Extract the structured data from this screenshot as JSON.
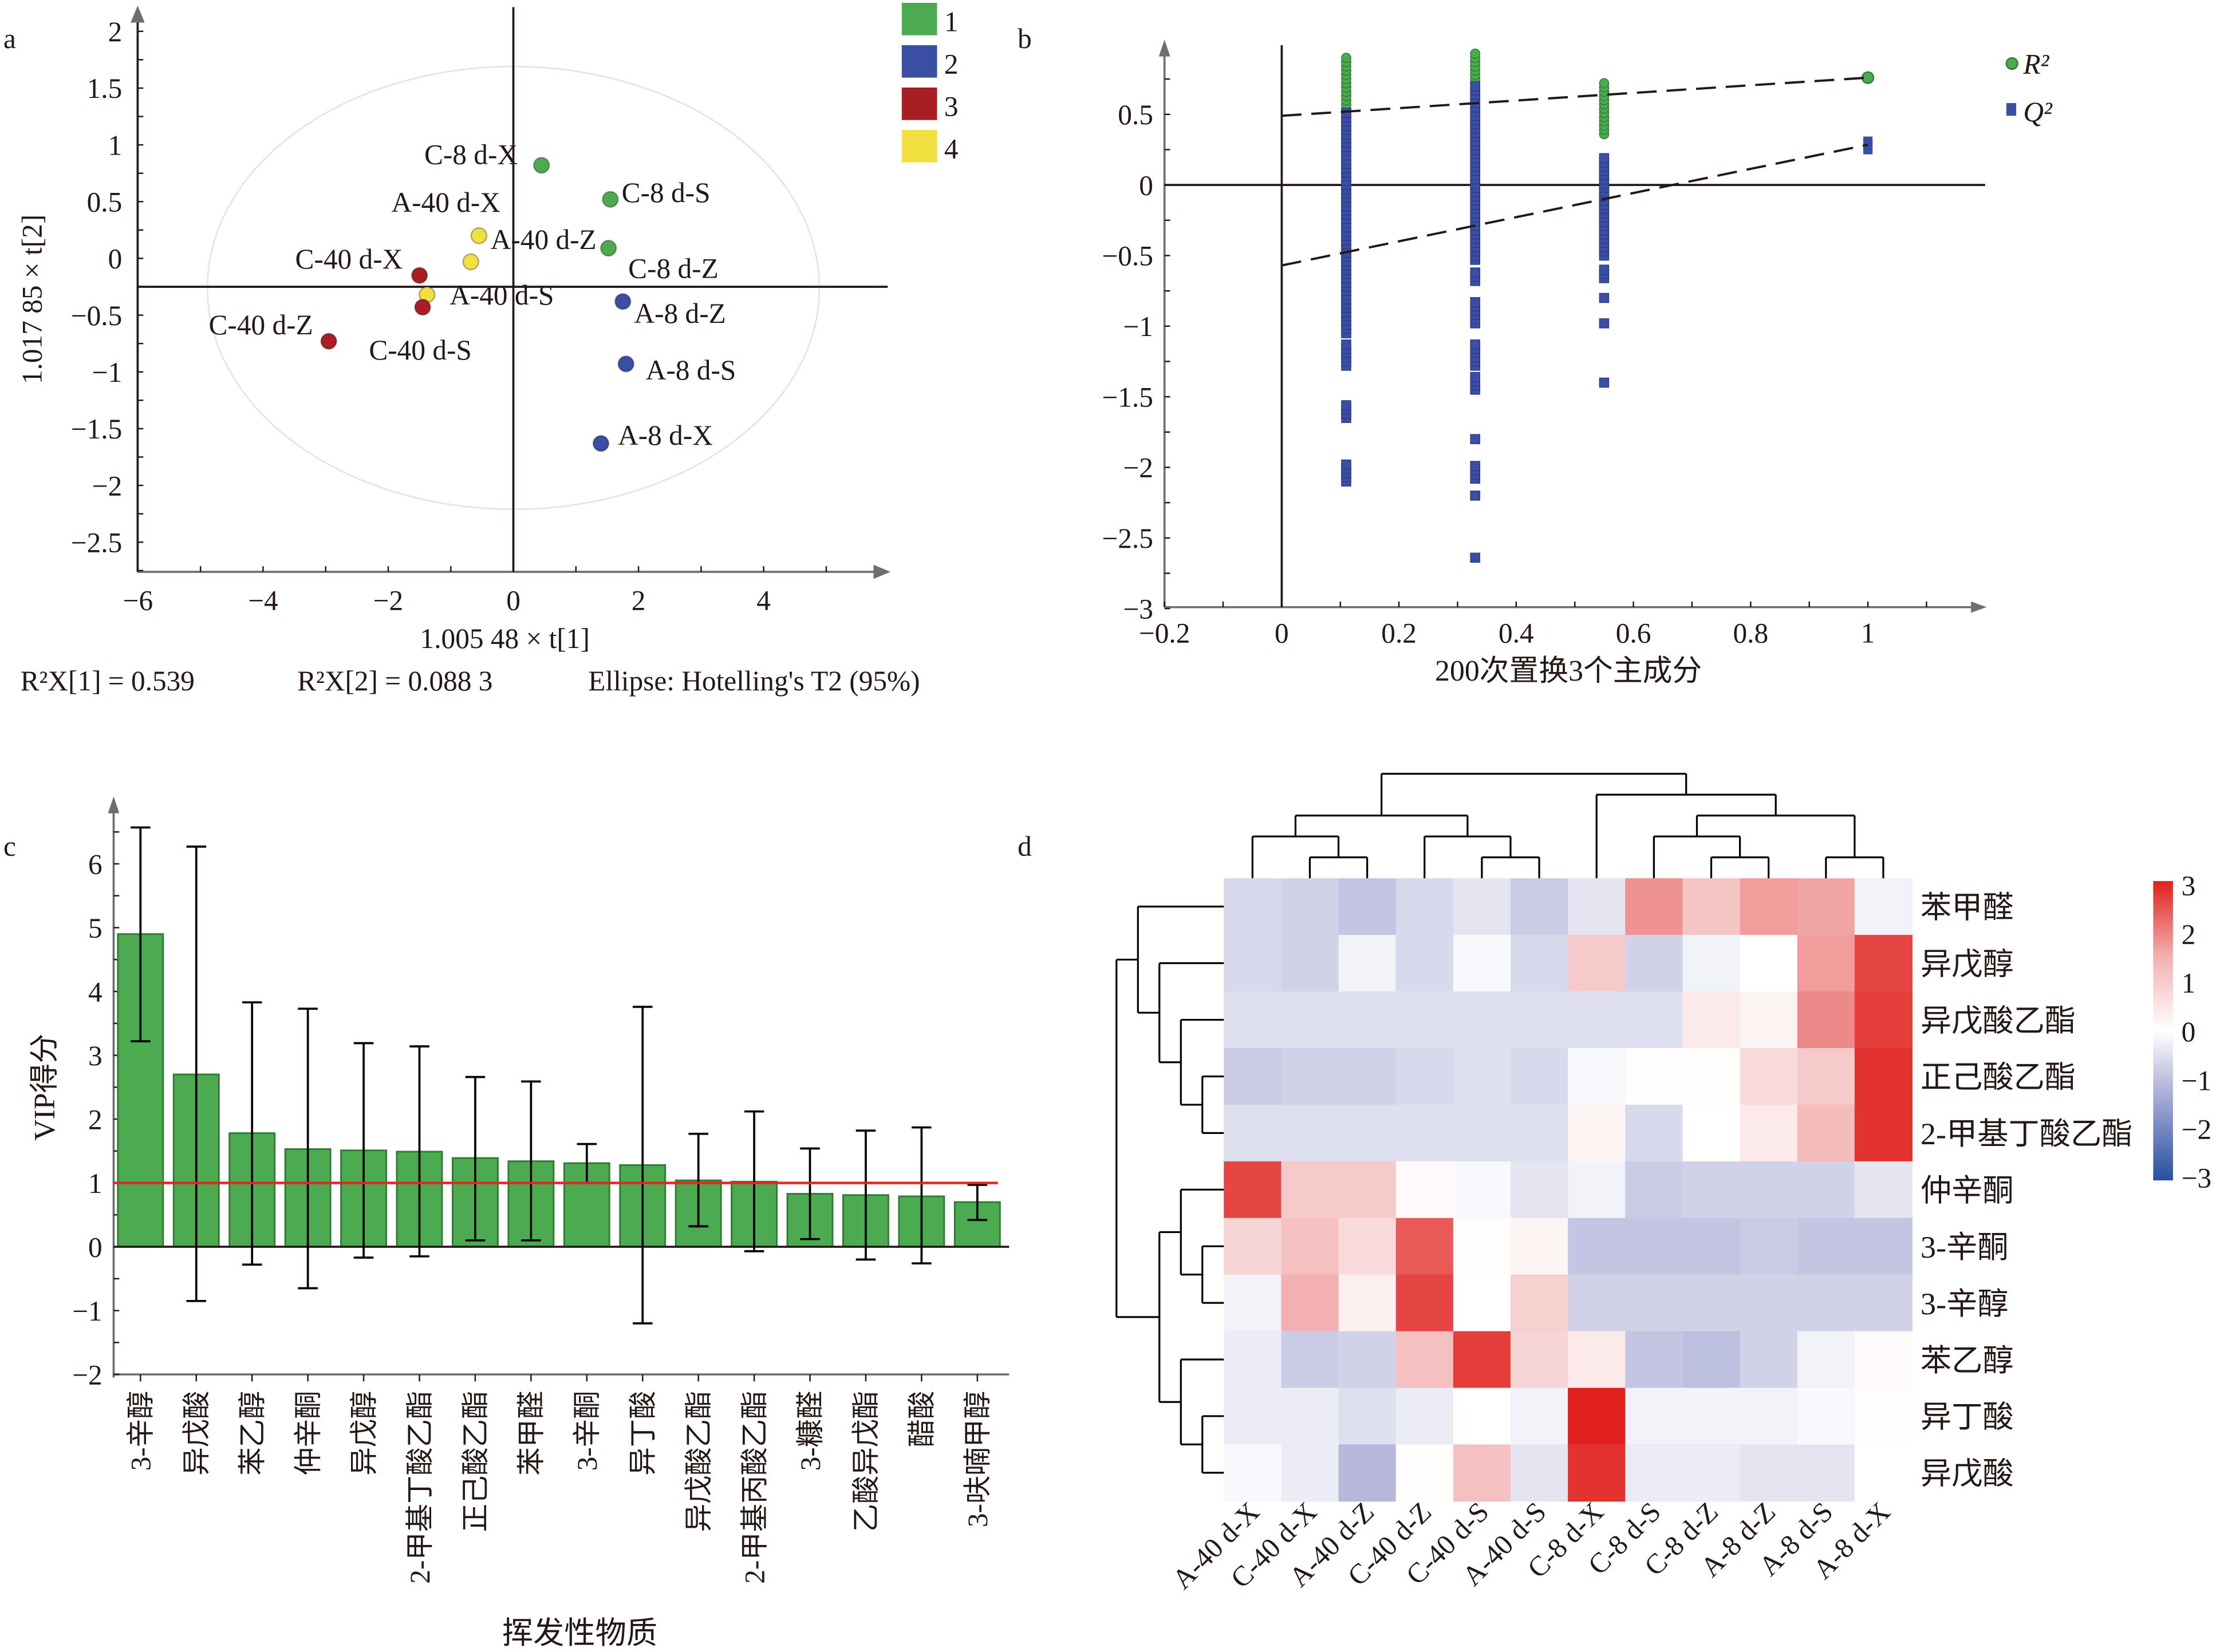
{
  "panel_labels": {
    "a": "a",
    "b": "b",
    "c": "c",
    "d": "d"
  },
  "chart_data": [
    {
      "type": "scatter",
      "panel": "a",
      "xlabel": "1.005 48 × t[1]",
      "ylabel": "1.017 85 × t[2]",
      "xlim": [
        -6,
        6
      ],
      "ylim": [
        -2.8,
        2.2
      ],
      "xticks": [
        -6,
        -4,
        -2,
        0,
        2,
        4
      ],
      "yticks": [
        2,
        1.5,
        1,
        0.5,
        0,
        -0.5,
        -1,
        -1.5,
        -2,
        -2.5
      ],
      "reference_lines": {
        "x": 0,
        "y": -0.25
      },
      "ellipse": {
        "cx": 0,
        "cy": -0.26,
        "rx": 4.89,
        "ry": 1.95
      },
      "footer": [
        "R²X[1] = 0.539",
        "R²X[2] = 0.088 3",
        "Ellipse: Hotelling's T2 (95%)"
      ],
      "legend": [
        {
          "label": "1",
          "color": "#4caa50"
        },
        {
          "label": "2",
          "color": "#3a4fa3"
        },
        {
          "label": "3",
          "color": "#a81e22"
        },
        {
          "label": "4",
          "color": "#f2e040"
        }
      ],
      "points": [
        {
          "label": "C-8 d-X",
          "x": 0.45,
          "y": 0.82,
          "group": 1
        },
        {
          "label": "C-8 d-S",
          "x": 1.55,
          "y": 0.52,
          "group": 1
        },
        {
          "label": "C-8 d-Z",
          "x": 1.52,
          "y": 0.09,
          "group": 1
        },
        {
          "label": "A-40 d-X",
          "x": -0.55,
          "y": 0.2,
          "group": 4
        },
        {
          "label": "A-40 d-Z",
          "x": -0.68,
          "y": -0.03,
          "group": 4
        },
        {
          "label": "A-40 d-S",
          "x": -1.38,
          "y": -0.32,
          "group": 4
        },
        {
          "label": "C-40 d-X",
          "x": -1.5,
          "y": -0.15,
          "group": 3
        },
        {
          "label": "C-40 d-S",
          "x": -1.45,
          "y": -0.43,
          "group": 3
        },
        {
          "label": "C-40 d-Z",
          "x": -2.95,
          "y": -0.73,
          "group": 3
        },
        {
          "label": "A-8 d-Z",
          "x": 1.75,
          "y": -0.38,
          "group": 2
        },
        {
          "label": "A-8 d-S",
          "x": 1.8,
          "y": -0.93,
          "group": 2
        },
        {
          "label": "A-8 d-X",
          "x": 1.4,
          "y": -1.63,
          "group": 2
        }
      ]
    },
    {
      "type": "scatter",
      "panel": "b",
      "xlabel": "200次置换3个主成分",
      "xlim": [
        -0.2,
        1.2
      ],
      "ylim": [
        -3,
        1
      ],
      "xticks": [
        -0.2,
        0,
        0.2,
        0.4,
        0.6,
        0.8,
        1
      ],
      "yticks": [
        0.5,
        0,
        -0.5,
        -1,
        -1.5,
        -2,
        -2.5,
        -3
      ],
      "legend": [
        {
          "label": "R²",
          "color": "#4caa50",
          "marker": "circle"
        },
        {
          "label": "Q²",
          "color": "#3a4fa3",
          "marker": "square"
        }
      ],
      "permutations": [
        {
          "x": 0.11,
          "r2_ranges": [
            [
              0.54,
              0.92
            ]
          ],
          "q2_ranges": [
            [
              -1.05,
              0.52
            ],
            [
              -1.28,
              -1.13
            ],
            [
              -1.65,
              -1.55
            ],
            [
              -2.1,
              -1.98
            ]
          ]
        },
        {
          "x": 0.33,
          "r2_ranges": [
            [
              0.21,
              0.93
            ]
          ],
          "q2_ranges": [
            [
              -0.53,
              0.72
            ],
            [
              -0.68,
              -0.6
            ],
            [
              -0.98,
              -0.82
            ],
            [
              -1.28,
              -1.12
            ],
            [
              -1.45,
              -1.35
            ],
            [
              -1.8,
              -1.8
            ],
            [
              -2.08,
              -1.98
            ],
            [
              -2.2,
              -2.2
            ],
            [
              -2.64,
              -2.64
            ]
          ]
        },
        {
          "x": 0.55,
          "r2_ranges": [
            [
              0.36,
              0.72
            ]
          ],
          "q2_ranges": [
            [
              -0.5,
              0.19
            ],
            [
              -0.66,
              -0.58
            ],
            [
              -0.8,
              -0.8
            ],
            [
              -0.98,
              -0.98
            ],
            [
              -1.4,
              -1.4
            ]
          ]
        }
      ],
      "original": {
        "x": 1,
        "r2": 0.76,
        "q2_range": [
          0.25,
          0.32
        ]
      },
      "r2_intercept": 0.49,
      "q2_intercept": -0.57
    },
    {
      "type": "bar",
      "panel": "c",
      "xlabel": "挥发性物质",
      "ylabel": "VIP得分",
      "ylim": [
        -2,
        6.8
      ],
      "yticks": [
        6,
        5,
        4,
        3,
        2,
        1,
        0,
        -1,
        -2
      ],
      "threshold": 1,
      "categories": [
        "3-辛醇",
        "异戊酸",
        "苯乙醇",
        "仲辛酮",
        "异戊醇",
        "2-甲基丁酸乙酯",
        "正己酸乙酯",
        "苯甲醛",
        "3-辛酮",
        "异丁酸",
        "异戊酸乙酯",
        "2-甲基丙酸乙酯",
        "3-糠醛",
        "乙酸异戊酯",
        "醋酸",
        "3-呋喃甲醇"
      ],
      "values": [
        4.9,
        2.7,
        1.78,
        1.53,
        1.51,
        1.49,
        1.39,
        1.34,
        1.31,
        1.28,
        1.04,
        1.02,
        0.83,
        0.81,
        0.79,
        0.7
      ],
      "error_low": [
        3.22,
        -0.85,
        -0.28,
        -0.65,
        -0.17,
        -0.15,
        0.1,
        0.1,
        1.0,
        -1.2,
        0.32,
        -0.07,
        0.12,
        -0.2,
        -0.26,
        0.42
      ],
      "error_high": [
        6.57,
        6.27,
        3.83,
        3.73,
        3.19,
        3.14,
        2.66,
        2.59,
        1.61,
        3.76,
        1.77,
        2.12,
        1.54,
        1.82,
        1.87,
        0.97
      ]
    },
    {
      "type": "heatmap",
      "panel": "d",
      "rows": [
        "苯甲醛",
        "异戊醇",
        "异戊酸乙酯",
        "正己酸乙酯",
        "2-甲基丁酸乙酯",
        "仲辛酮",
        "3-辛酮",
        "3-辛醇",
        "苯乙醇",
        "异丁酸",
        "异戊酸"
      ],
      "columns": [
        "A-40 d-X",
        "C-40 d-X",
        "A-40 d-Z",
        "C-40 d-Z",
        "C-40 d-S",
        "A-40 d-S",
        "C-8 d-X",
        "C-8 d-S",
        "C-8 d-Z",
        "A-8 d-Z",
        "A-8 d-S",
        "A-8 d-X"
      ],
      "values": [
        [
          -0.6,
          -0.7,
          -0.9,
          -0.6,
          -0.4,
          -0.8,
          -0.4,
          1.8,
          1.1,
          1.7,
          1.6,
          -0.2
        ],
        [
          -0.6,
          -0.7,
          -0.2,
          -0.6,
          -0.1,
          -0.6,
          1.0,
          -0.7,
          -0.2,
          0.0,
          1.7,
          2.6
        ],
        [
          -0.5,
          -0.5,
          -0.5,
          -0.5,
          -0.5,
          -0.5,
          -0.5,
          -0.5,
          0.4,
          0.2,
          1.9,
          2.7
        ],
        [
          -0.8,
          -0.7,
          -0.7,
          -0.6,
          -0.5,
          -0.6,
          -0.1,
          0.05,
          0.05,
          0.7,
          1.0,
          2.8
        ],
        [
          -0.5,
          -0.5,
          -0.5,
          -0.5,
          -0.5,
          -0.5,
          0.2,
          -0.6,
          0.0,
          0.4,
          1.3,
          2.8
        ],
        [
          2.6,
          1.0,
          1.0,
          0.1,
          -0.1,
          -0.4,
          -0.2,
          -0.8,
          -0.7,
          -0.7,
          -0.7,
          -0.4
        ],
        [
          0.8,
          1.2,
          0.7,
          2.4,
          0.05,
          0.2,
          -0.9,
          -0.9,
          -0.9,
          -0.8,
          -0.9,
          -0.9
        ],
        [
          -0.2,
          1.5,
          0.3,
          2.6,
          0.0,
          0.9,
          -0.7,
          -0.7,
          -0.7,
          -0.7,
          -0.7,
          -0.7
        ],
        [
          -0.3,
          -0.8,
          -0.7,
          1.2,
          2.7,
          0.8,
          0.4,
          -0.9,
          -1.0,
          -0.7,
          -0.2,
          0.1
        ],
        [
          -0.3,
          -0.3,
          -0.5,
          -0.3,
          0.0,
          -0.2,
          3.0,
          -0.2,
          -0.2,
          -0.2,
          -0.1,
          0.05
        ],
        [
          -0.1,
          -0.3,
          -1.1,
          0.05,
          1.2,
          -0.4,
          2.8,
          -0.3,
          -0.3,
          -0.4,
          -0.4,
          0.0
        ]
      ],
      "colorbar": {
        "ticks": [
          "3",
          "2",
          "1",
          "0",
          "−1",
          "−2",
          "−3"
        ],
        "min": -3,
        "max": 3,
        "low_color": "#2650a0",
        "mid_color": "#ffffff",
        "high_color": "#e0201c"
      },
      "row_tree": [
        [
          0,
          [
            1,
            [
              2,
              [
                3,
                4
              ]
            ]
          ]
        ],
        [
          [
            5,
            [
              6,
              7
            ]
          ],
          [
            8,
            [
              9,
              10
            ]
          ]
        ]
      ],
      "col_tree": [
        [
          [
            0,
            [
              1,
              2
            ]
          ],
          [
            3,
            [
              4,
              5
            ]
          ]
        ],
        [
          6,
          [
            [
              7,
              [
                8,
                9
              ]
            ],
            [
              10,
              11
            ]
          ]
        ]
      ]
    }
  ]
}
